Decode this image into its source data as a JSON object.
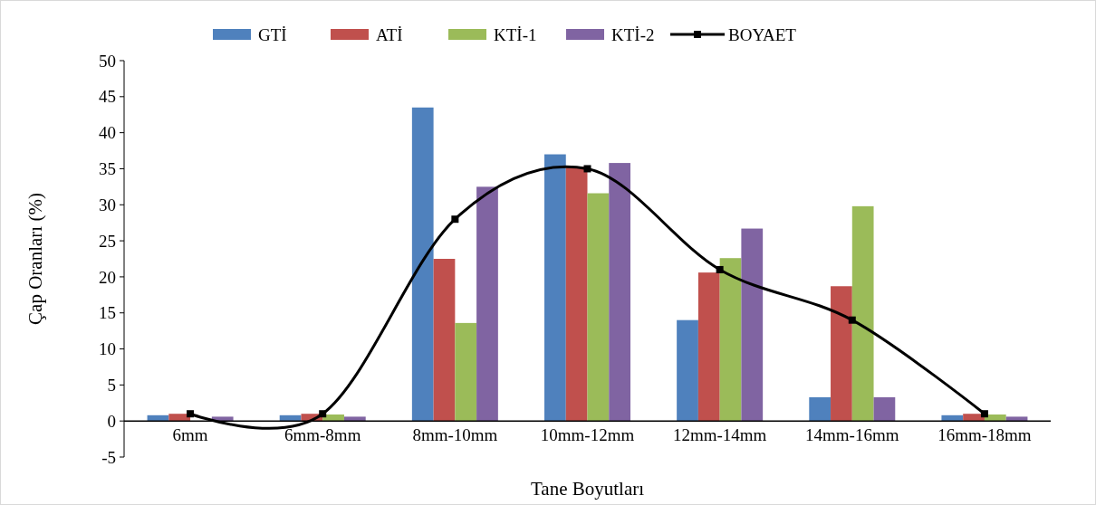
{
  "chart_data": {
    "type": "bar",
    "xlabel": "Tane Boyutları",
    "ylabel": "Çap Oranları (%)",
    "categories": [
      "6mm",
      "6mm-8mm",
      "8mm-10mm",
      "10mm-12mm",
      "12mm-14mm",
      "14mm-16mm",
      "16mm-18mm"
    ],
    "series": [
      {
        "name": "GTİ",
        "color": "#4f81bd",
        "values": [
          0.8,
          0.8,
          43.5,
          37,
          14,
          3.3,
          0.8
        ]
      },
      {
        "name": "ATİ",
        "color": "#c0504d",
        "values": [
          1,
          1,
          22.5,
          35.3,
          20.6,
          18.7,
          1
        ]
      },
      {
        "name": "KTİ-1",
        "color": "#9bbb59",
        "values": [
          null,
          0.9,
          13.6,
          31.6,
          22.6,
          29.8,
          0.9
        ]
      },
      {
        "name": "KTİ-2",
        "color": "#8064a2",
        "values": [
          0.6,
          0.6,
          32.5,
          35.8,
          26.7,
          3.3,
          0.6
        ]
      },
      {
        "name": "BOYAET",
        "type": "line",
        "color": "#000000",
        "values": [
          1,
          1,
          28,
          35,
          21,
          14,
          1
        ]
      }
    ],
    "ylim": [
      -5,
      50
    ],
    "yticks": [
      -5,
      0,
      5,
      10,
      15,
      20,
      25,
      30,
      35,
      40,
      45,
      50
    ],
    "grid": false,
    "legend": "top",
    "marker": "square",
    "line_style": "solid"
  }
}
